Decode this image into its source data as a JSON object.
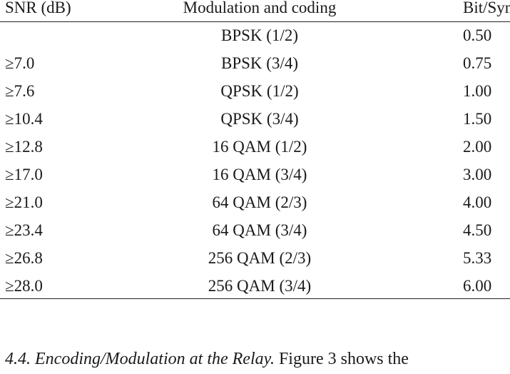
{
  "table": {
    "headers": [
      "SNR (dB)",
      "Modulation and coding",
      "Bit/Sym"
    ],
    "rows": [
      [
        "",
        "BPSK (1/2)",
        "0.50"
      ],
      [
        "≥7.0",
        "BPSK (3/4)",
        "0.75"
      ],
      [
        "≥7.6",
        "QPSK (1/2)",
        "1.00"
      ],
      [
        "≥10.4",
        "QPSK (3/4)",
        "1.50"
      ],
      [
        "≥12.8",
        "16 QAM (1/2)",
        "2.00"
      ],
      [
        "≥17.0",
        "16 QAM (3/4)",
        "3.00"
      ],
      [
        "≥21.0",
        "64 QAM (2/3)",
        "4.00"
      ],
      [
        "≥23.4",
        "64 QAM (3/4)",
        "4.50"
      ],
      [
        "≥26.8",
        "256 QAM (2/3)",
        "5.33"
      ],
      [
        "≥28.0",
        "256 QAM (3/4)",
        "6.00"
      ]
    ]
  },
  "paragraph": {
    "section_heading": "4.4. Encoding/Modulation at the Relay.",
    "text": "Figure 3 shows the"
  }
}
